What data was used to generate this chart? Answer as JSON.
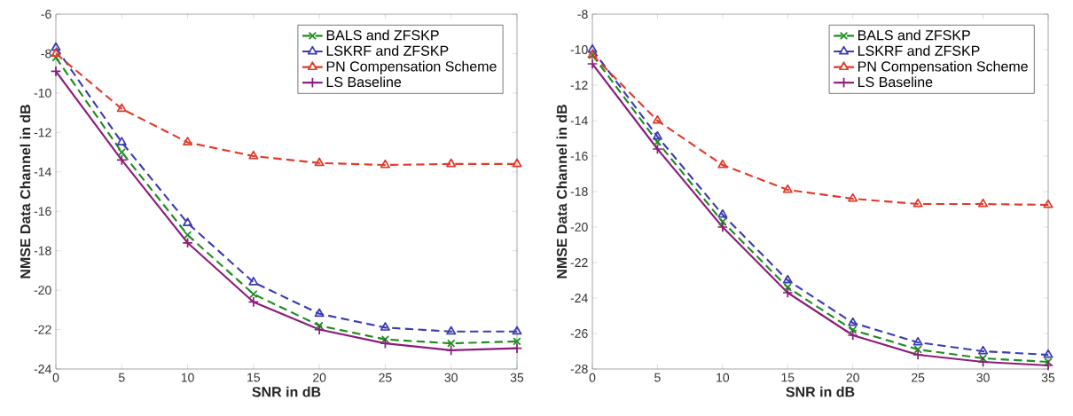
{
  "chart_data": [
    {
      "type": "line",
      "xlabel": "SNR in dB",
      "ylabel": "NMSE Data Channel in dB",
      "x": [
        0,
        5,
        10,
        15,
        20,
        25,
        30,
        35
      ],
      "xlim": [
        0,
        35
      ],
      "xticks": [
        0,
        5,
        10,
        15,
        20,
        25,
        30,
        35
      ],
      "ylim": [
        -24,
        -6
      ],
      "yticks": [
        -24,
        -22,
        -20,
        -18,
        -16,
        -14,
        -12,
        -10,
        -8,
        -6
      ],
      "grid": false,
      "legend": "top right",
      "series": [
        {
          "name": "BALS and ZFSKP",
          "color": "#1e8c1e",
          "marker": "x",
          "line_style": "dashed",
          "values": [
            -8.2,
            -13.0,
            -17.2,
            -20.2,
            -21.8,
            -22.5,
            -22.7,
            -22.6
          ]
        },
        {
          "name": "LSKRF and ZFSKP",
          "color": "#3c3cb4",
          "marker": "triangle",
          "line_style": "dashed",
          "values": [
            -7.7,
            -12.5,
            -16.6,
            -19.6,
            -21.2,
            -21.9,
            -22.1,
            -22.1
          ]
        },
        {
          "name": "PN Compensation Scheme",
          "color": "#e03a2a",
          "marker": "triangle",
          "line_style": "dashed",
          "values": [
            -8.0,
            -10.8,
            -12.5,
            -13.2,
            -13.55,
            -13.65,
            -13.6,
            -13.6
          ]
        },
        {
          "name": "LS Baseline",
          "color": "#8c1c7c",
          "marker": "cross",
          "line_style": "solid",
          "values": [
            -8.9,
            -13.4,
            -17.6,
            -20.6,
            -22.0,
            -22.7,
            -23.05,
            -22.95
          ]
        }
      ]
    },
    {
      "type": "line",
      "xlabel": "SNR in dB",
      "ylabel": "NMSE Data Channel in dB",
      "x": [
        0,
        5,
        10,
        15,
        20,
        25,
        30,
        35
      ],
      "xlim": [
        0,
        35
      ],
      "xticks": [
        0,
        5,
        10,
        15,
        20,
        25,
        30,
        35
      ],
      "ylim": [
        -28,
        -8
      ],
      "yticks": [
        -28,
        -26,
        -24,
        -22,
        -20,
        -18,
        -16,
        -14,
        -12,
        -10,
        -8
      ],
      "grid": false,
      "legend": "top right",
      "series": [
        {
          "name": "BALS and ZFSKP",
          "color": "#1e8c1e",
          "marker": "x",
          "line_style": "dashed",
          "values": [
            -10.3,
            -15.2,
            -19.7,
            -23.4,
            -25.8,
            -26.9,
            -27.4,
            -27.6
          ]
        },
        {
          "name": "LSKRF and ZFSKP",
          "color": "#3c3cb4",
          "marker": "triangle",
          "line_style": "dashed",
          "values": [
            -10.0,
            -14.9,
            -19.3,
            -23.0,
            -25.4,
            -26.5,
            -27.0,
            -27.2
          ]
        },
        {
          "name": "PN Compensation Scheme",
          "color": "#e03a2a",
          "marker": "triangle",
          "line_style": "dashed",
          "values": [
            -10.3,
            -14.0,
            -16.5,
            -17.9,
            -18.4,
            -18.7,
            -18.7,
            -18.75
          ]
        },
        {
          "name": "LS Baseline",
          "color": "#8c1c7c",
          "marker": "cross",
          "line_style": "solid",
          "values": [
            -10.8,
            -15.6,
            -20.0,
            -23.7,
            -26.1,
            -27.2,
            -27.6,
            -27.8
          ]
        }
      ]
    }
  ]
}
